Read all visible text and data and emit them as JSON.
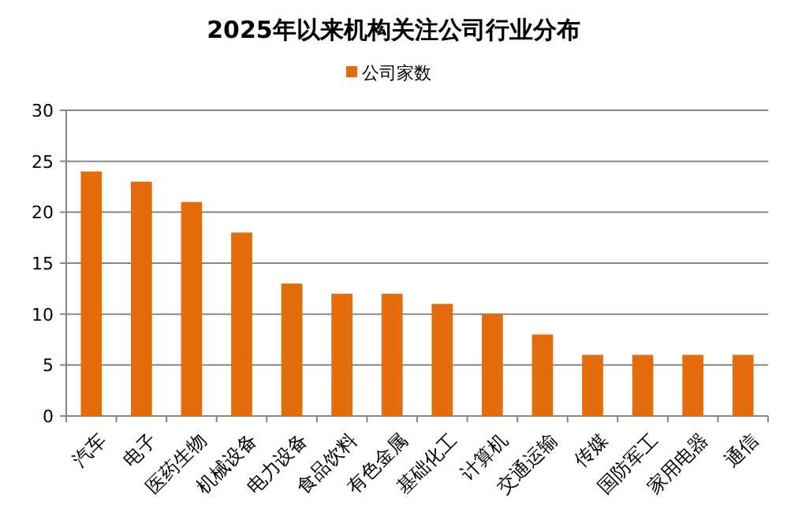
{
  "chart_data": {
    "type": "bar",
    "title": "2025年以来机构关注公司行业分布",
    "categories": [
      "汽车",
      "电子",
      "医药生物",
      "机械设备",
      "电力设备",
      "食品饮料",
      "有色金属",
      "基础化工",
      "计算机",
      "交通运输",
      "传媒",
      "国防军工",
      "家用电器",
      "通信"
    ],
    "series": [
      {
        "name": "公司家数",
        "color": "#e46c0a",
        "values": [
          24,
          23,
          21,
          18,
          13,
          12,
          12,
          11,
          10,
          8,
          6,
          6,
          6,
          6
        ]
      }
    ],
    "ylim": [
      0,
      30
    ],
    "yticks": [
      0,
      5,
      10,
      15,
      20,
      25,
      30
    ],
    "grid": "y",
    "legend": "top"
  }
}
